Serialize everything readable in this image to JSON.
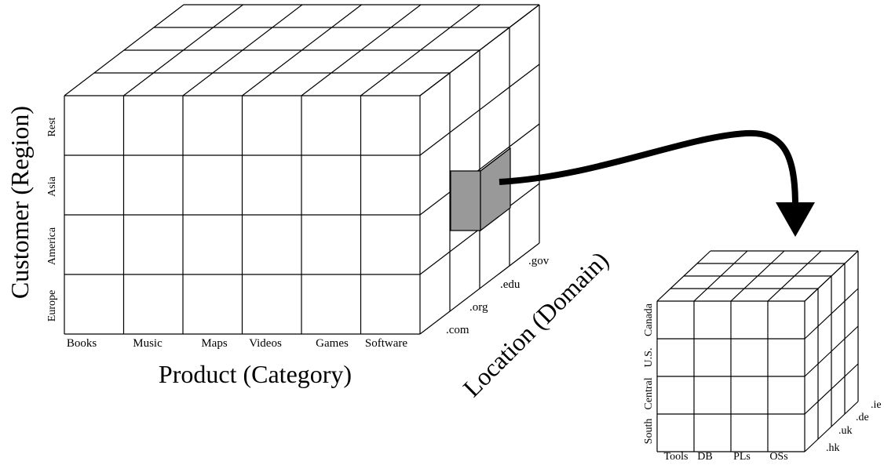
{
  "large_cube": {
    "x_axis_title": "Product (Category)",
    "y_axis_title": "Customer (Region)",
    "z_axis_title": "Location (Domain)",
    "x_labels": [
      "Books",
      "Music",
      "Maps",
      "Videos",
      "Games",
      "Software"
    ],
    "y_labels": [
      "Rest",
      "Asia",
      "America",
      "Europe"
    ],
    "z_labels": [
      ".com",
      ".org",
      ".edu",
      ".gov"
    ]
  },
  "small_cube": {
    "x_labels": [
      "Tools",
      "DB",
      "PLs",
      "OSs"
    ],
    "y_labels": [
      "Canada",
      "U.S.",
      "Central",
      "South"
    ],
    "z_labels": [
      ".hk",
      ".uk",
      ".de",
      ".ie"
    ]
  },
  "colors": {
    "line": "#000000",
    "highlight_cell": "#999999",
    "background": "#ffffff"
  }
}
